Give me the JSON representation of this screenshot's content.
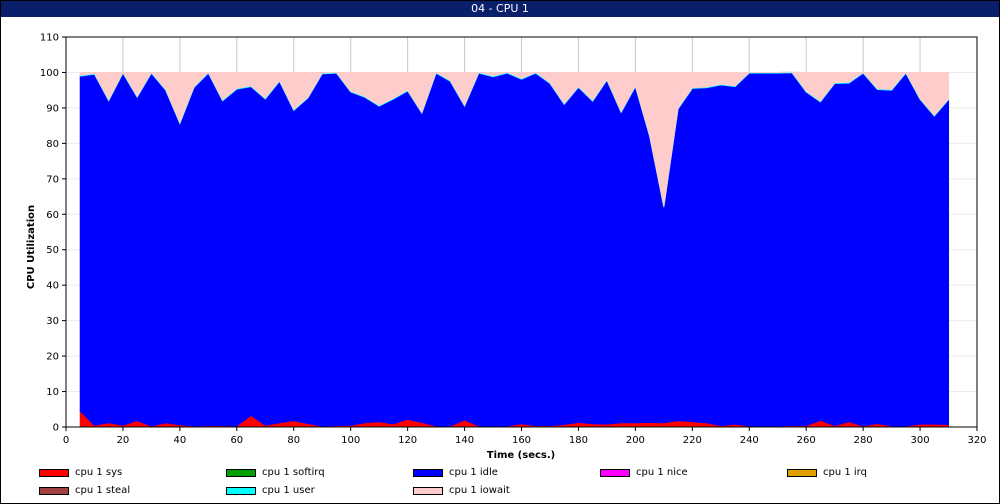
{
  "window": {
    "title": "04 - CPU 1"
  },
  "chart_data": {
    "type": "area",
    "stacked": true,
    "xlabel": "Time (secs.)",
    "ylabel": "CPU Utilization",
    "xlim": [
      0,
      320
    ],
    "ylim": [
      0,
      110
    ],
    "xticks": [
      0,
      20,
      40,
      60,
      80,
      100,
      120,
      140,
      160,
      180,
      200,
      220,
      240,
      260,
      280,
      300,
      320
    ],
    "yticks": [
      0,
      10,
      20,
      30,
      40,
      50,
      60,
      70,
      80,
      90,
      100,
      110
    ],
    "grid": true,
    "legend_position": "bottom",
    "x": [
      5,
      10,
      15,
      20,
      25,
      30,
      35,
      40,
      45,
      50,
      55,
      60,
      65,
      70,
      75,
      80,
      85,
      90,
      95,
      100,
      105,
      110,
      115,
      120,
      125,
      130,
      135,
      140,
      145,
      150,
      155,
      160,
      165,
      170,
      175,
      180,
      185,
      190,
      195,
      200,
      205,
      210,
      215,
      220,
      225,
      230,
      235,
      240,
      245,
      250,
      255,
      260,
      265,
      270,
      275,
      280,
      285,
      290,
      295,
      300,
      305,
      310
    ],
    "series": [
      {
        "name": "cpu 1 sys",
        "color": "#ff0000",
        "values": [
          4.5,
          0.5,
          1.2,
          0.5,
          1.8,
          0.3,
          1.2,
          0.6,
          0.3,
          0.4,
          0.4,
          0.3,
          3.3,
          0.5,
          1.2,
          1.8,
          1.0,
          0.2,
          0.4,
          0.5,
          1.2,
          1.5,
          0.9,
          2.2,
          1.3,
          0.3,
          0.3,
          2.0,
          0.3,
          0.3,
          0.3,
          0.9,
          0.4,
          0.4,
          0.7,
          1.3,
          0.9,
          0.8,
          1.2,
          1.2,
          1.3,
          1.2,
          1.8,
          1.5,
          1.2,
          0.4,
          0.8,
          0.3,
          0.3,
          0.3,
          0.4,
          0.4,
          1.9,
          0.4,
          1.5,
          0.3,
          1.0,
          0.3,
          0.3,
          0.8,
          0.8,
          0.7
        ]
      },
      {
        "name": "cpu 1 softirq",
        "color": "#00a000",
        "values": [
          0,
          0,
          0,
          0,
          0,
          0,
          0,
          0,
          0,
          0,
          0,
          0,
          0,
          0,
          0,
          0,
          0,
          0,
          0,
          0,
          0,
          0,
          0,
          0,
          0,
          0,
          0,
          0,
          0,
          0,
          0,
          0,
          0,
          0,
          0,
          0,
          0,
          0,
          0,
          0,
          0,
          0,
          0,
          0,
          0,
          0,
          0,
          0,
          0,
          0,
          0,
          0,
          0,
          0,
          0,
          0,
          0,
          0,
          0,
          0,
          0,
          0
        ]
      },
      {
        "name": "cpu 1 idle",
        "color": "#0000ff",
        "values": [
          94.5,
          99.0,
          90.8,
          99.3,
          91.2,
          99.5,
          93.8,
          85.0,
          95.5,
          99.4,
          91.6,
          95.0,
          92.7,
          92.0,
          96.3,
          87.5,
          91.8,
          99.4,
          99.4,
          94.0,
          91.8,
          89.0,
          91.6,
          92.6,
          87.2,
          99.5,
          97.2,
          88.5,
          99.5,
          98.5,
          99.5,
          97.2,
          99.4,
          96.5,
          90.3,
          94.5,
          91.0,
          97.0,
          87.5,
          94.8,
          80.7,
          60.8,
          87.9,
          94.0,
          94.5,
          96.1,
          95.2,
          99.5,
          99.5,
          99.5,
          99.5,
          94.1,
          89.8,
          96.5,
          95.5,
          99.5,
          94.2,
          94.7,
          99.5,
          91.6,
          86.9,
          91.6
        ]
      },
      {
        "name": "cpu 1 nice",
        "color": "#ff00ff",
        "values": [
          0,
          0,
          0,
          0,
          0,
          0,
          0,
          0,
          0,
          0,
          0,
          0,
          0,
          0,
          0,
          0,
          0,
          0,
          0,
          0,
          0,
          0,
          0,
          0,
          0,
          0,
          0,
          0,
          0,
          0,
          0,
          0,
          0,
          0,
          0,
          0,
          0,
          0,
          0,
          0,
          0,
          0,
          0,
          0,
          0,
          0,
          0,
          0,
          0,
          0,
          0,
          0,
          0,
          0,
          0,
          0,
          0,
          0,
          0,
          0,
          0,
          0
        ]
      },
      {
        "name": "cpu 1 irq",
        "color": "#e0a000",
        "values": [
          0,
          0,
          0,
          0,
          0,
          0,
          0,
          0,
          0,
          0,
          0,
          0,
          0,
          0,
          0,
          0,
          0,
          0,
          0,
          0,
          0,
          0,
          0,
          0,
          0,
          0,
          0,
          0,
          0,
          0,
          0,
          0,
          0,
          0,
          0,
          0,
          0,
          0,
          0,
          0,
          0,
          0,
          0,
          0,
          0,
          0,
          0,
          0,
          0,
          0,
          0,
          0,
          0,
          0,
          0,
          0,
          0,
          0,
          0,
          0,
          0,
          0
        ]
      },
      {
        "name": "cpu 1 steal",
        "color": "#a04040",
        "values": [
          0,
          0,
          0,
          0,
          0,
          0,
          0,
          0,
          0,
          0,
          0,
          0,
          0,
          0,
          0,
          0,
          0,
          0,
          0,
          0,
          0,
          0,
          0,
          0,
          0,
          0,
          0,
          0,
          0,
          0,
          0,
          0,
          0,
          0,
          0,
          0,
          0,
          0,
          0,
          0,
          0,
          0,
          0,
          0,
          0,
          0,
          0,
          0,
          0,
          0,
          0,
          0,
          0,
          0,
          0,
          0,
          0,
          0,
          0,
          0,
          0,
          0
        ]
      },
      {
        "name": "cpu 1 user",
        "color": "#00ffff",
        "values": [
          0.2,
          0.2,
          0.2,
          0.2,
          0.2,
          0.2,
          0.2,
          0.2,
          0.2,
          0.2,
          0.2,
          0.2,
          0.2,
          0.2,
          0.2,
          0.2,
          0.2,
          0.2,
          0.2,
          0.2,
          0.2,
          0.2,
          0.2,
          0.2,
          0.2,
          0.2,
          0.2,
          0.2,
          0.2,
          0.2,
          0.2,
          0.2,
          0.2,
          0.2,
          0.2,
          0.2,
          0.2,
          0.2,
          0.2,
          0.2,
          0.2,
          0.2,
          0.2,
          0.2,
          0.2,
          0.2,
          0.2,
          0.2,
          0.2,
          0.2,
          0.2,
          0.2,
          0.2,
          0.2,
          0.2,
          0.2,
          0.2,
          0.2,
          0.2,
          0.2,
          0.2,
          0.2
        ]
      },
      {
        "name": "cpu 1 iowait",
        "color": "#ffcccc",
        "values": [
          0.8,
          0.3,
          7.8,
          0.0,
          6.8,
          0.0,
          4.8,
          14.2,
          4.0,
          0.0,
          7.8,
          4.5,
          3.8,
          7.3,
          2.3,
          10.5,
          7.0,
          0.2,
          0.0,
          5.3,
          6.8,
          9.3,
          7.3,
          5.0,
          11.3,
          0.0,
          2.3,
          9.3,
          0.0,
          1.0,
          0.0,
          1.7,
          0.0,
          2.9,
          8.8,
          4.0,
          7.9,
          2.0,
          11.1,
          3.8,
          17.8,
          37.8,
          10.1,
          4.3,
          4.1,
          3.3,
          3.8,
          0.0,
          0.0,
          0.0,
          0.0,
          5.3,
          8.1,
          2.9,
          2.8,
          0.0,
          4.6,
          4.8,
          0.0,
          7.4,
          12.1,
          7.5
        ]
      }
    ]
  }
}
